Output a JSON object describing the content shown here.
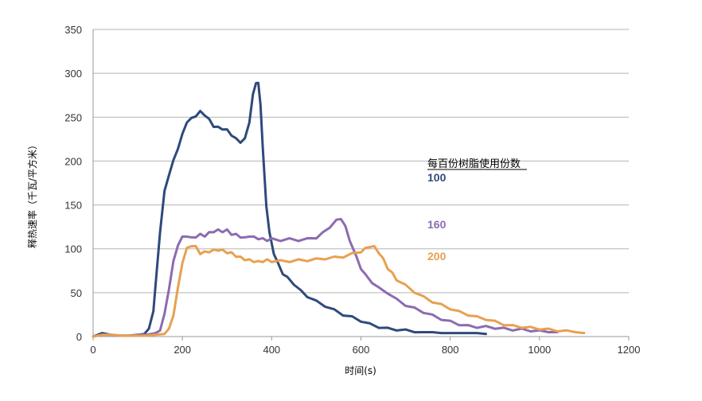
{
  "chart_data": {
    "type": "line",
    "xlabel": "时间(s)",
    "ylabel": "释热速率（千瓦/平方米）",
    "xlim": [
      0,
      1200
    ],
    "ylim": [
      0,
      350
    ],
    "x_ticks": [
      0,
      200,
      400,
      600,
      800,
      1000,
      1200
    ],
    "y_ticks": [
      0,
      50,
      100,
      150,
      200,
      250,
      300,
      350
    ],
    "grid": "horizontal",
    "legend_title": "每百份树脂使用份数",
    "series": [
      {
        "name": "100",
        "color": "#2e4a7a",
        "points": [
          [
            0,
            0
          ],
          [
            20,
            4
          ],
          [
            40,
            2
          ],
          [
            60,
            1
          ],
          [
            80,
            1
          ],
          [
            100,
            2
          ],
          [
            115,
            3
          ],
          [
            125,
            8
          ],
          [
            135,
            30
          ],
          [
            142,
            70
          ],
          [
            150,
            120
          ],
          [
            160,
            165
          ],
          [
            170,
            185
          ],
          [
            180,
            200
          ],
          [
            190,
            215
          ],
          [
            200,
            230
          ],
          [
            210,
            245
          ],
          [
            220,
            248
          ],
          [
            230,
            252
          ],
          [
            240,
            256
          ],
          [
            250,
            253
          ],
          [
            260,
            247
          ],
          [
            270,
            240
          ],
          [
            280,
            238
          ],
          [
            290,
            237
          ],
          [
            300,
            235
          ],
          [
            310,
            230
          ],
          [
            320,
            225
          ],
          [
            330,
            222
          ],
          [
            340,
            225
          ],
          [
            350,
            245
          ],
          [
            358,
            275
          ],
          [
            365,
            290
          ],
          [
            370,
            288
          ],
          [
            375,
            265
          ],
          [
            380,
            215
          ],
          [
            388,
            150
          ],
          [
            395,
            118
          ],
          [
            405,
            95
          ],
          [
            415,
            82
          ],
          [
            425,
            72
          ],
          [
            435,
            67
          ],
          [
            450,
            60
          ],
          [
            465,
            52
          ],
          [
            480,
            46
          ],
          [
            500,
            40
          ],
          [
            520,
            35
          ],
          [
            540,
            30
          ],
          [
            560,
            25
          ],
          [
            580,
            22
          ],
          [
            600,
            18
          ],
          [
            620,
            14
          ],
          [
            640,
            11
          ],
          [
            660,
            9
          ],
          [
            680,
            8
          ],
          [
            700,
            7
          ],
          [
            720,
            6
          ],
          [
            740,
            5
          ],
          [
            760,
            5
          ],
          [
            780,
            4
          ],
          [
            800,
            4
          ],
          [
            820,
            4
          ],
          [
            840,
            4
          ],
          [
            860,
            4
          ],
          [
            880,
            3
          ]
        ]
      },
      {
        "name": "160",
        "color": "#8c6bb1",
        "points": [
          [
            0,
            0
          ],
          [
            20,
            2
          ],
          [
            40,
            2
          ],
          [
            60,
            1
          ],
          [
            80,
            1
          ],
          [
            100,
            2
          ],
          [
            120,
            2
          ],
          [
            140,
            4
          ],
          [
            150,
            8
          ],
          [
            160,
            25
          ],
          [
            170,
            55
          ],
          [
            180,
            85
          ],
          [
            190,
            105
          ],
          [
            200,
            113
          ],
          [
            210,
            115
          ],
          [
            220,
            112
          ],
          [
            230,
            114
          ],
          [
            240,
            116
          ],
          [
            250,
            115
          ],
          [
            260,
            118
          ],
          [
            270,
            120
          ],
          [
            280,
            121
          ],
          [
            290,
            120
          ],
          [
            300,
            121
          ],
          [
            310,
            117
          ],
          [
            320,
            116
          ],
          [
            330,
            114
          ],
          [
            340,
            112
          ],
          [
            350,
            115
          ],
          [
            360,
            113
          ],
          [
            370,
            112
          ],
          [
            380,
            111
          ],
          [
            390,
            110
          ],
          [
            400,
            111
          ],
          [
            420,
            110
          ],
          [
            440,
            111
          ],
          [
            460,
            110
          ],
          [
            480,
            111
          ],
          [
            500,
            113
          ],
          [
            515,
            118
          ],
          [
            530,
            125
          ],
          [
            545,
            132
          ],
          [
            555,
            135
          ],
          [
            565,
            125
          ],
          [
            575,
            110
          ],
          [
            590,
            90
          ],
          [
            600,
            78
          ],
          [
            610,
            70
          ],
          [
            625,
            62
          ],
          [
            640,
            55
          ],
          [
            660,
            50
          ],
          [
            680,
            42
          ],
          [
            700,
            36
          ],
          [
            720,
            32
          ],
          [
            740,
            28
          ],
          [
            760,
            24
          ],
          [
            780,
            20
          ],
          [
            800,
            17
          ],
          [
            820,
            14
          ],
          [
            840,
            12
          ],
          [
            860,
            11
          ],
          [
            880,
            11
          ],
          [
            900,
            10
          ],
          [
            920,
            9
          ],
          [
            940,
            8
          ],
          [
            960,
            8
          ],
          [
            980,
            7
          ],
          [
            1000,
            6
          ],
          [
            1020,
            5
          ],
          [
            1040,
            5
          ]
        ]
      },
      {
        "name": "200",
        "color": "#e8a050",
        "points": [
          [
            0,
            0
          ],
          [
            20,
            2
          ],
          [
            40,
            2
          ],
          [
            60,
            1
          ],
          [
            80,
            1
          ],
          [
            100,
            1
          ],
          [
            120,
            1
          ],
          [
            140,
            2
          ],
          [
            160,
            3
          ],
          [
            170,
            8
          ],
          [
            180,
            25
          ],
          [
            190,
            55
          ],
          [
            200,
            85
          ],
          [
            210,
            100
          ],
          [
            220,
            104
          ],
          [
            230,
            102
          ],
          [
            240,
            95
          ],
          [
            250,
            96
          ],
          [
            260,
            97
          ],
          [
            270,
            98
          ],
          [
            280,
            99
          ],
          [
            290,
            98
          ],
          [
            300,
            96
          ],
          [
            310,
            95
          ],
          [
            320,
            92
          ],
          [
            330,
            90
          ],
          [
            340,
            88
          ],
          [
            350,
            87
          ],
          [
            360,
            86
          ],
          [
            370,
            85
          ],
          [
            380,
            86
          ],
          [
            390,
            87
          ],
          [
            400,
            86
          ],
          [
            420,
            86
          ],
          [
            440,
            86
          ],
          [
            460,
            87
          ],
          [
            480,
            87
          ],
          [
            500,
            88
          ],
          [
            520,
            89
          ],
          [
            540,
            90
          ],
          [
            560,
            91
          ],
          [
            580,
            94
          ],
          [
            600,
            97
          ],
          [
            610,
            100
          ],
          [
            620,
            103
          ],
          [
            630,
            102
          ],
          [
            640,
            96
          ],
          [
            650,
            88
          ],
          [
            660,
            78
          ],
          [
            670,
            72
          ],
          [
            680,
            65
          ],
          [
            700,
            58
          ],
          [
            720,
            51
          ],
          [
            740,
            45
          ],
          [
            760,
            40
          ],
          [
            780,
            36
          ],
          [
            800,
            32
          ],
          [
            820,
            28
          ],
          [
            840,
            25
          ],
          [
            860,
            22
          ],
          [
            880,
            20
          ],
          [
            900,
            17
          ],
          [
            920,
            14
          ],
          [
            940,
            12
          ],
          [
            960,
            11
          ],
          [
            980,
            10
          ],
          [
            1000,
            9
          ],
          [
            1020,
            8
          ],
          [
            1040,
            7
          ],
          [
            1060,
            6
          ],
          [
            1080,
            5
          ],
          [
            1100,
            4
          ]
        ]
      }
    ],
    "annotation_label_values": [
      {
        "series": "100",
        "label_y": 180
      },
      {
        "series": "160",
        "label_y": 126
      },
      {
        "series": "200",
        "label_y": 90
      }
    ]
  }
}
